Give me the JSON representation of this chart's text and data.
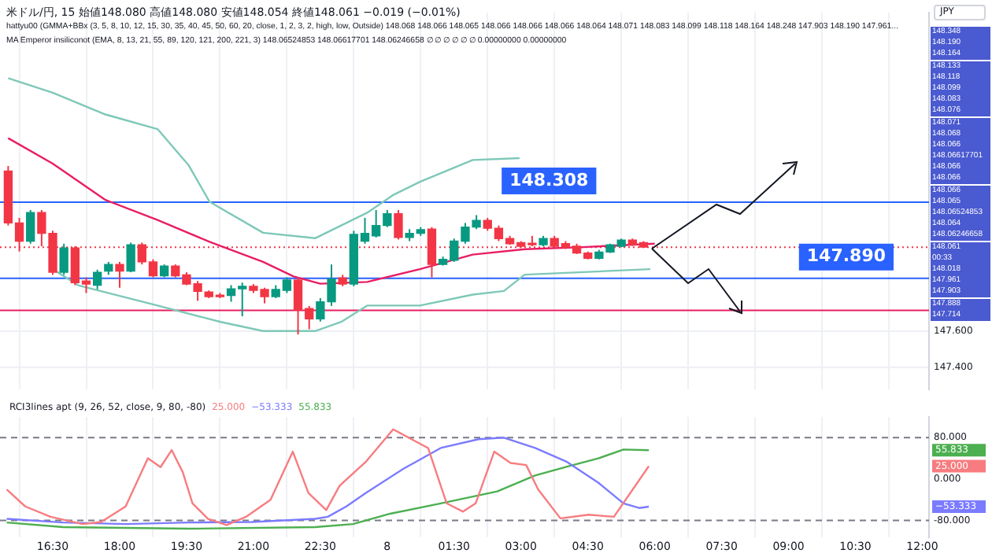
{
  "chart_data": [
    {
      "type": "candlestick",
      "title": "米ドル/円, 15",
      "subtitle": "始値148.080 高値148.080 安値148.054 終値148.061 −0.019 (−0.01%)",
      "annotations": [
        "hattyu00 (GMMA+BBx (3, 5, 8, 10, 12, 15, 30, 35, 40, 45, 50, 60, 20, close, 1, 2, 3, 2, high, low, Outside) 148.068 148.066 148.065 148.066 148.066 148.066 148.064 148.071 148.083 148.099 148.118 148.164 148.248 147.903 148.190 147.961...",
        "MA Emperor insiliconot (EMA, 8, 13, 21, 55, 89, 120, 121, 200, 221, 3) 148.06524853 148.06617701 148.06246658 ∅ ∅ ∅ ∅ ∅ ∅ 0.00000000 0.00000000",
        "JPY",
        "148.348",
        "148.190",
        "148.164",
        "148.133",
        "148.118",
        "148.099",
        "148.083",
        "148.076",
        "148.071",
        "148.068",
        "148.066",
        "148.06617701",
        "148.066",
        "148.066",
        "148.066",
        "148.065",
        "148.06524853",
        "148.064",
        "148.06246658",
        "148.061",
        "00:33",
        "148.018",
        "147.961",
        "147.903",
        "147.888",
        "147.714"
      ],
      "x": [
        "--08-07T15:30",
        "--08-07T15:45",
        "--08-07T16:00",
        "--08-07T16:15",
        "--08-07T16:30",
        "--08-07T16:45",
        "--08-07T17:00",
        "--08-07T17:15",
        "--08-07T17:30",
        "--08-07T17:45",
        "--08-07T18:00",
        "--08-07T18:15",
        "--08-07T18:30",
        "--08-07T18:45",
        "--08-07T19:00",
        "--08-07T19:15",
        "--08-07T19:30",
        "--08-07T19:45",
        "--08-07T20:00",
        "--08-07T20:15",
        "--08-07T20:30",
        "--08-07T20:45",
        "--08-07T21:00",
        "--08-07T21:15",
        "--08-07T21:30",
        "--08-07T21:45",
        "--08-07T22:00",
        "--08-07T22:15",
        "--08-07T22:30",
        "--08-07T22:45",
        "--08-07T23:00",
        "--08-07T23:15",
        "--08-07T23:30",
        "--08-07T23:45",
        "--08-08T00:00",
        "--08-08T00:15",
        "--08-08T00:30",
        "--08-08T00:45",
        "--08-08T01:00",
        "--08-08T01:15",
        "--08-08T01:30",
        "--08-08T01:45",
        "--08-08T02:00",
        "--08-08T02:15",
        "--08-08T02:30",
        "--08-08T02:45",
        "--08-08T03:00",
        "--08-08T03:15",
        "--08-08T03:30",
        "--08-08T03:45",
        "--08-08T04:00",
        "--08-08T04:15",
        "--08-08T04:30",
        "--08-08T04:45",
        "--08-08T05:00",
        "--08-08T05:15",
        "--08-08T05:30",
        "--08-08T05:45"
      ],
      "ohlc": [
        [
          148.479,
          148.507,
          148.18,
          148.194
        ],
        [
          148.194,
          148.222,
          148.037,
          148.094
        ],
        [
          148.094,
          148.265,
          148.08,
          148.251
        ],
        [
          148.251,
          148.265,
          148.066,
          148.137
        ],
        [
          148.137,
          148.151,
          147.909,
          147.923
        ],
        [
          147.923,
          148.08,
          147.909,
          148.057
        ],
        [
          148.057,
          148.066,
          147.852,
          147.866
        ],
        [
          147.875,
          147.895,
          147.809,
          147.858
        ],
        [
          147.852,
          147.937,
          147.829,
          147.923
        ],
        [
          147.929,
          147.98,
          147.909,
          147.966
        ],
        [
          147.966,
          147.98,
          147.838,
          147.929
        ],
        [
          147.929,
          148.086,
          147.923,
          148.074
        ],
        [
          148.074,
          148.086,
          147.966,
          147.98
        ],
        [
          147.98,
          147.994,
          147.895,
          147.903
        ],
        [
          147.903,
          147.966,
          147.895,
          147.957
        ],
        [
          147.957,
          147.966,
          147.895,
          147.903
        ],
        [
          147.909,
          147.923,
          147.852,
          147.858
        ],
        [
          147.86,
          147.875,
          147.766,
          147.818
        ],
        [
          147.815,
          147.823,
          147.781,
          147.789
        ],
        [
          147.795,
          147.809,
          147.781,
          147.789
        ],
        [
          147.795,
          147.852,
          147.761,
          147.832
        ],
        [
          147.832,
          147.866,
          147.681,
          147.846
        ],
        [
          147.846,
          147.858,
          147.809,
          147.823
        ],
        [
          147.829,
          147.838,
          147.752,
          147.789
        ],
        [
          147.789,
          147.852,
          147.781,
          147.829
        ],
        [
          147.823,
          147.895,
          147.809,
          147.88
        ],
        [
          147.88,
          147.895,
          147.581,
          147.715
        ],
        [
          147.724,
          147.738,
          147.61,
          147.667
        ],
        [
          147.667,
          147.781,
          147.652,
          147.761
        ],
        [
          147.761,
          147.966,
          147.738,
          147.886
        ],
        [
          147.892,
          147.909,
          147.846,
          147.858
        ],
        [
          147.858,
          148.151,
          147.846,
          148.131
        ],
        [
          148.094,
          148.222,
          148.08,
          148.137
        ],
        [
          148.123,
          148.265,
          148.114,
          148.18
        ],
        [
          148.18,
          148.265,
          148.171,
          148.245
        ],
        [
          148.245,
          148.265,
          148.103,
          148.114
        ],
        [
          148.114,
          148.16,
          148.094,
          148.137
        ],
        [
          148.137,
          148.171,
          148.123,
          148.157
        ],
        [
          148.16,
          148.171,
          147.895,
          147.966
        ],
        [
          147.966,
          148.009,
          147.96,
          147.994
        ],
        [
          147.989,
          148.108,
          147.98,
          148.094
        ],
        [
          148.094,
          148.194,
          148.08,
          148.171
        ],
        [
          148.171,
          148.237,
          148.16,
          148.208
        ],
        [
          148.208,
          148.222,
          148.151,
          148.165
        ],
        [
          148.165,
          148.18,
          148.094,
          148.108
        ],
        [
          148.108,
          148.123,
          148.074,
          148.08
        ],
        [
          148.086,
          148.094,
          148.057,
          148.066
        ],
        [
          148.08,
          148.123,
          148.066,
          148.074
        ],
        [
          148.074,
          148.123,
          148.066,
          148.108
        ],
        [
          148.108,
          148.123,
          148.057,
          148.066
        ],
        [
          148.08,
          148.094,
          148.051,
          148.06
        ],
        [
          148.066,
          148.08,
          148.023,
          148.029
        ],
        [
          148.029,
          148.037,
          147.994,
          148.0
        ],
        [
          148.0,
          148.046,
          147.994,
          148.034
        ],
        [
          148.034,
          148.08,
          148.029,
          148.074
        ],
        [
          148.066,
          148.108,
          148.06,
          148.1
        ],
        [
          148.1,
          148.108,
          148.068,
          148.074
        ],
        [
          148.086,
          148.094,
          148.057,
          148.061
        ]
      ],
      "series": [
        {
          "type": "line",
          "color": "#e91e63",
          "x": [
            "--08-07T15:30",
            "--08-07T16:30",
            "--08-07T17:41",
            "--08-07T18:51",
            "--08-07T20:01",
            "--08-07T21:13",
            "--08-07T21:54",
            "--08-07T22:30",
            "--08-07T23:33",
            "--08-08T00:44",
            "--08-08T01:55",
            "--08-08T03:05",
            "--08-08T04:17",
            "--08-08T06:00"
          ],
          "values": [
            148.66,
            148.52,
            148.32,
            148.21,
            148.09,
            147.98,
            147.9,
            147.86,
            147.87,
            147.94,
            148.02,
            148.05,
            148.06,
            148.08
          ]
        },
        {
          "type": "line",
          "color": "#7ec8b8",
          "x": [
            "--08-07T15:30",
            "--08-07T16:30",
            "--08-07T17:41",
            "--08-07T18:51",
            "--08-07T19:33",
            "--08-07T20:01",
            "--08-07T21:13",
            "--08-07T22:23",
            "--08-07T23:33",
            "--08-08T00:09",
            "--08-08T00:44",
            "--08-08T01:55",
            "--08-08T02:58"
          ],
          "values": [
            148.99,
            148.91,
            148.79,
            148.71,
            148.51,
            148.31,
            148.14,
            148.11,
            148.25,
            148.35,
            148.42,
            148.54,
            148.55
          ]
        },
        {
          "type": "line",
          "color": "#7ec8b8",
          "x": [
            "--08-07T16:30",
            "--08-07T17:05",
            "--08-07T18:51",
            "--08-07T20:16",
            "--08-07T21:13",
            "--08-07T22:23",
            "--08-07T22:58",
            "--08-07T23:33",
            "--08-08T00:44",
            "--08-08T01:55",
            "--08-08T02:37",
            "--08-08T03:05",
            "--08-08T05:54"
          ],
          "values": [
            147.94,
            147.85,
            147.74,
            147.65,
            147.6,
            147.6,
            147.65,
            147.74,
            147.74,
            147.8,
            147.82,
            147.91,
            147.94
          ]
        }
      ],
      "xlim": [
        "--08-07T15:19",
        "--08-08T12:09"
      ],
      "xticks": [
        {
          "value": "--08-07T16:30",
          "label": null
        },
        {
          "value": "--08-07T18:00",
          "label": null
        },
        {
          "value": "--08-07T19:30",
          "label": null
        },
        {
          "value": "--08-07T21:00",
          "label": null
        },
        {
          "value": "--08-07T22:30",
          "label": null
        },
        {
          "value": "--08-08T00:00",
          "label": null
        },
        {
          "value": "--08-08T01:30",
          "label": null
        },
        {
          "value": "--08-08T03:00",
          "label": null
        },
        {
          "value": "--08-08T04:30",
          "label": null
        },
        {
          "value": "--08-08T06:00",
          "label": null
        },
        {
          "value": "--08-08T07:30",
          "label": null
        },
        {
          "value": "--08-08T09:00",
          "label": null
        },
        {
          "value": "--08-08T10:30",
          "label": null
        },
        {
          "value": "--08-08T12:00",
          "label": null
        }
      ],
      "ylim": [
        147.28,
        149.35
      ],
      "yticks": [
        {
          "value": 147.4,
          "label": "147.400"
        },
        {
          "value": 147.6,
          "label": "147.600"
        }
      ],
      "tick_labels": "y",
      "grid": true,
      "ref_lines": [
        {
          "axis": "y",
          "value": 148.308,
          "label": "148.308",
          "color": "#2962ff"
        },
        {
          "axis": "y",
          "value": 147.89,
          "label": "147.890",
          "color": "#2962ff"
        },
        {
          "axis": "y",
          "value": 147.714,
          "color": "#e91e63"
        },
        {
          "axis": "y",
          "value": 148.061,
          "color": "#f23645",
          "line_style": "dotted"
        }
      ]
    },
    {
      "type": "line",
      "title": "RCI3lines apt (9, 26, 52, close, 9, 80, -80)",
      "series": [
        {
          "color": "#f77c80",
          "x": [
            "--08-07T15:28",
            "--08-07T15:53",
            "--08-07T16:27",
            "--08-07T17:10",
            "--08-07T17:35",
            "--08-07T18:08",
            "--08-07T18:38",
            "--08-07T18:55",
            "--08-07T19:10",
            "--08-07T19:25",
            "--08-07T19:38",
            "--08-07T19:59",
            "--08-07T20:24",
            "--08-07T20:50",
            "--08-07T21:23",
            "--08-07T21:53",
            "--08-07T22:14",
            "--08-07T22:38",
            "--08-07T22:56",
            "--08-07T23:31",
            "--08-08T00:08",
            "--08-08T00:55",
            "--08-08T01:20",
            "--08-08T01:42",
            "--08-08T01:59",
            "--08-08T02:24",
            "--08-08T02:46",
            "--08-08T03:07",
            "--08-08T03:23",
            "--08-08T03:53",
            "--08-08T04:31",
            "--08-08T05:05",
            "--08-08T05:52"
          ],
          "values": [
            -20,
            -53,
            -73,
            -87,
            -83,
            -53,
            40,
            23,
            56,
            13,
            -47,
            -77,
            -89,
            -73,
            -40,
            53,
            -27,
            -60,
            -13,
            33,
            96,
            60,
            -47,
            -63,
            -47,
            53,
            31,
            27,
            -20,
            -76,
            -69,
            -73,
            25
          ]
        },
        {
          "color": "#7b7bff",
          "x": [
            "--08-07T15:28",
            "--08-07T16:44",
            "--08-07T18:08",
            "--08-07T19:34",
            "--08-07T20:58",
            "--08-07T22:23",
            "--08-07T22:40",
            "--08-07T23:05",
            "--08-07T23:31",
            "--08-08T00:22",
            "--08-08T01:12",
            "--08-08T02:03",
            "--08-08T02:37",
            "--08-08T03:19",
            "--08-08T04:02",
            "--08-08T04:44",
            "--08-08T05:18",
            "--08-08T05:39",
            "--08-08T05:52"
          ],
          "values": [
            -77,
            -84,
            -87,
            -84,
            -83,
            -77,
            -73,
            -53,
            -27,
            20,
            60,
            77,
            80,
            60,
            33,
            -7,
            -47,
            -56,
            -53.333
          ]
        },
        {
          "color": "#4caf50",
          "x": [
            "--08-07T15:28",
            "--08-07T16:44",
            "--08-07T19:34",
            "--08-07T22:23",
            "--08-07T23:14",
            "--08-08T00:04",
            "--08-08T01:12",
            "--08-08T02:28",
            "--08-08T03:19",
            "--08-08T04:02",
            "--08-08T04:44",
            "--08-08T05:18",
            "--08-08T05:52"
          ],
          "values": [
            -84,
            -93,
            -96,
            -93,
            -87,
            -67,
            -47,
            -24,
            7,
            24,
            40,
            57,
            55.833
          ]
        }
      ],
      "annotations": [
        "25.000",
        "−53.333",
        "55.833"
      ],
      "xlim": [
        "--08-07T15:19",
        "--08-08T12:09"
      ],
      "xticks": [
        {
          "value": "--08-07T16:30",
          "label": "16:30"
        },
        {
          "value": "--08-07T18:00",
          "label": "18:00"
        },
        {
          "value": "--08-07T19:30",
          "label": "19:30"
        },
        {
          "value": "--08-07T21:00",
          "label": "21:00"
        },
        {
          "value": "--08-07T22:30",
          "label": "22:30"
        },
        {
          "value": "--08-08T00:00",
          "label": "8"
        },
        {
          "value": "--08-08T01:30",
          "label": "01:30"
        },
        {
          "value": "--08-08T03:00",
          "label": "03:00"
        },
        {
          "value": "--08-08T04:30",
          "label": "04:30"
        },
        {
          "value": "--08-08T06:00",
          "label": "06:00"
        },
        {
          "value": "--08-08T07:30",
          "label": "07:30"
        },
        {
          "value": "--08-08T09:00",
          "label": "09:00"
        },
        {
          "value": "--08-08T10:30",
          "label": "10:30"
        },
        {
          "value": "--08-08T12:00",
          "label": "12:00"
        }
      ],
      "ylim": [
        -113,
        120
      ],
      "yticks": [
        {
          "value": -80,
          "label": "-80.000"
        },
        {
          "value": 0,
          "label": "0.000"
        },
        {
          "value": 80,
          "label": "80.000"
        }
      ],
      "grid": "x",
      "ref_lines": [
        {
          "axis": "y",
          "value": 80,
          "color": "#787b86",
          "line_style": "dashed"
        },
        {
          "axis": "y",
          "value": -80,
          "color": "#787b86",
          "line_style": "dashed"
        }
      ]
    }
  ]
}
